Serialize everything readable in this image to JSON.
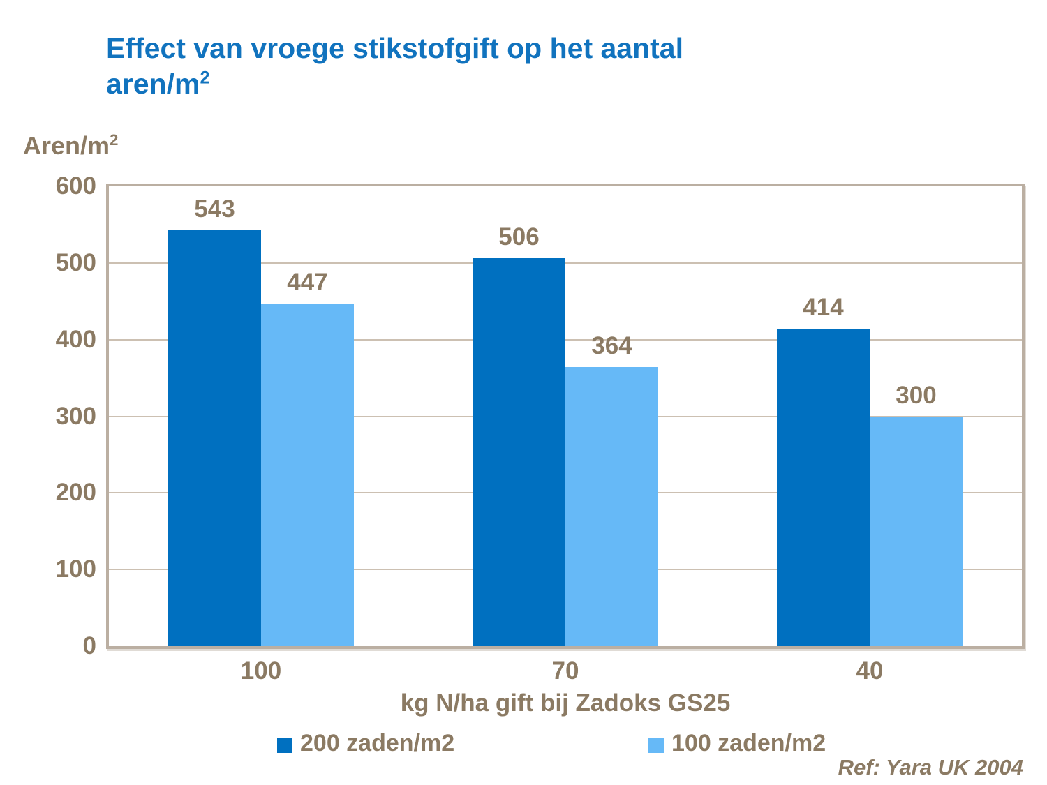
{
  "slide": {
    "title_line1": "Effect van vroege stikstofgift op het aantal",
    "title_line2_base": "aren/m",
    "title_superscript": "2",
    "ref_text": "Ref: Yara UK 2004"
  },
  "colors": {
    "title_blue": "#1173BE",
    "series1_dark_blue": "#0070C0",
    "series2_light_blue": "#66B9F7",
    "axis_text_brown": "#8B7A63",
    "gridline_tan": "#CCC0B2",
    "plot_border_tan": "#BBAFA2",
    "background": "#FFFFFF"
  },
  "chart_data": {
    "type": "bar",
    "title": "Effect van vroege stikstofgift op het aantal aren/m2",
    "ylabel_base": "Aren/m",
    "ylabel_superscript": "2",
    "xlabel": "kg N/ha gift bij Zadoks GS25",
    "categories": [
      "100",
      "70",
      "40"
    ],
    "series": [
      {
        "name": "200 zaden/m2",
        "color": "#0070C0",
        "values": [
          543,
          506,
          414
        ]
      },
      {
        "name": "100 zaden/m2",
        "color": "#66B9F7",
        "values": [
          447,
          364,
          300
        ]
      }
    ],
    "ylim": [
      0,
      600
    ],
    "yticks": [
      0,
      100,
      200,
      300,
      400,
      500,
      600
    ],
    "grid": true,
    "data_labels": true,
    "legend_position": "bottom",
    "annotation": "Ref: Yara UK 2004"
  }
}
